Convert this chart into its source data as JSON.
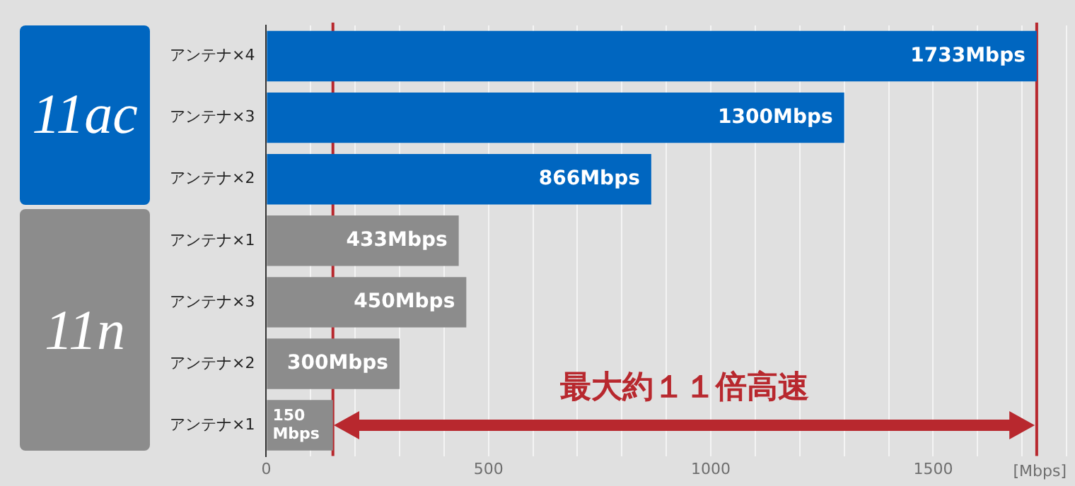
{
  "chart_data": {
    "type": "bar",
    "orientation": "horizontal",
    "categories": [
      "アンテナ×4",
      "アンテナ×3",
      "アンテナ×2",
      "アンテナ×1",
      "アンテナ×3",
      "アンテナ×2",
      "アンテナ×1"
    ],
    "values": [
      1733,
      1300,
      866,
      433,
      450,
      300,
      150
    ],
    "colors": [
      "#0066c0",
      "#0066c0",
      "#0066c0",
      "#8c8c8c",
      "#8c8c8c",
      "#8c8c8c",
      "#8c8c8c"
    ],
    "value_labels": [
      "1733Mbps",
      "1300Mbps",
      "866Mbps",
      "433Mbps",
      "450Mbps",
      "300Mbps",
      "150 Mbps"
    ],
    "xlabel": "[Mbps]",
    "xlim": [
      0,
      1800
    ],
    "xticks": [
      0,
      {
        "value": 100,
        "label": null
      },
      {
        "value": 200,
        "label": null
      },
      {
        "value": 300,
        "label": null
      },
      {
        "value": 400,
        "label": null
      },
      500,
      {
        "value": 600,
        "label": null
      },
      {
        "value": 700,
        "label": null
      },
      {
        "value": 800,
        "label": null
      },
      {
        "value": 900,
        "label": null
      },
      1000,
      {
        "value": 1100,
        "label": null
      },
      {
        "value": 1200,
        "label": null
      },
      {
        "value": 1300,
        "label": null
      },
      {
        "value": 1400,
        "label": null
      },
      1500,
      {
        "value": 1600,
        "label": null
      },
      {
        "value": 1700,
        "label": null
      },
      {
        "value": 1800,
        "label": null
      }
    ],
    "grid": "x",
    "legend": false,
    "annotations": [
      "11ac",
      "11n",
      "最大約１１倍高速"
    ],
    "ref_lines": [
      {
        "axis": "x",
        "value": 150,
        "color": "#b8282e"
      },
      {
        "axis": "x",
        "value": 1733,
        "color": "#b8282e"
      }
    ]
  }
}
